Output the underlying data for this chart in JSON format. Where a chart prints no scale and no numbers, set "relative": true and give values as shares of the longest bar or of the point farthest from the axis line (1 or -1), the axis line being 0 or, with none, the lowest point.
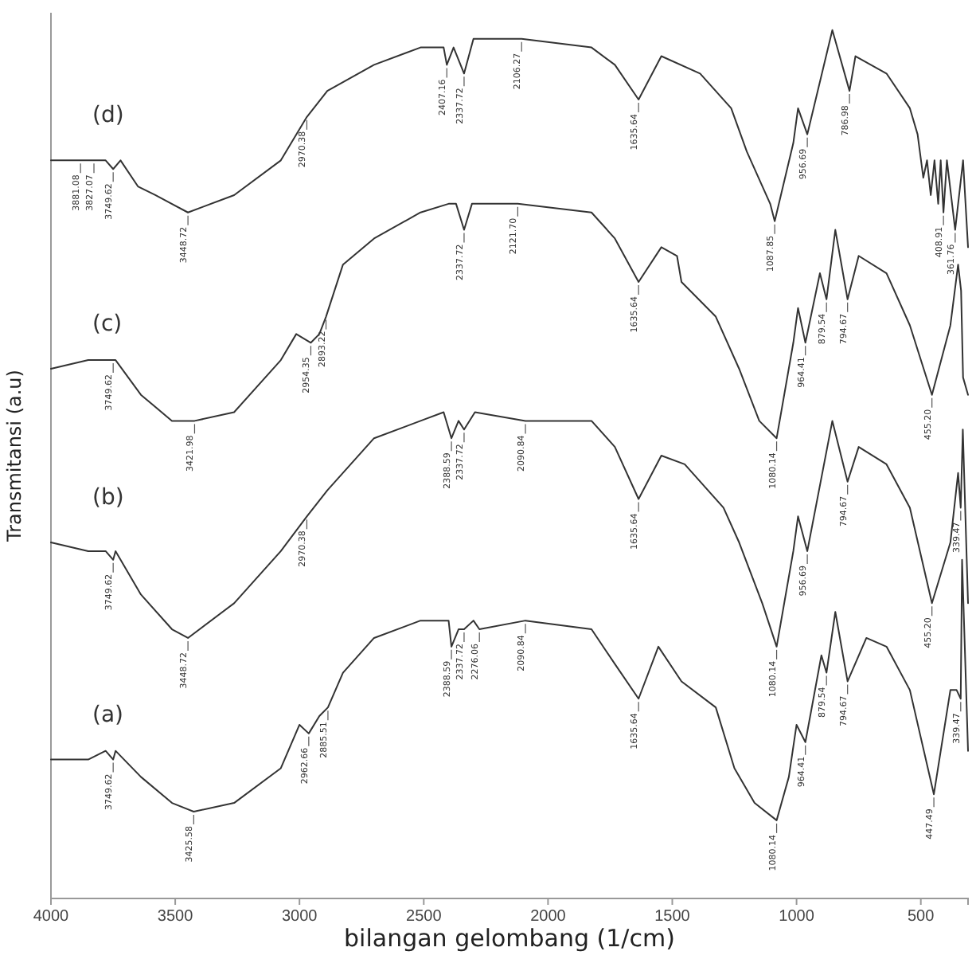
{
  "chart_data": {
    "type": "line",
    "relative": true,
    "xlabel": "bilangan gelombang (1/cm)",
    "ylabel": "Transmitansi (a.u)",
    "xlim": [
      4000,
      310
    ],
    "xticks": [
      4000,
      3500,
      3000,
      2500,
      2000,
      1500,
      1000,
      500
    ],
    "series": [
      {
        "name": "(d)",
        "color": "#333333",
        "x": [
          4000,
          3881,
          3827,
          3780,
          3749.62,
          3720,
          3650,
          3580,
          3448.72,
          3263,
          3075,
          2970.38,
          2888,
          2700,
          2513,
          2420,
          2407.16,
          2380,
          2337.72,
          2300,
          2106.27,
          1825,
          1731,
          1635.64,
          1544,
          1388,
          1263,
          1200,
          1106,
          1087.85,
          1013,
          994,
          956.69,
          856,
          786.98,
          763,
          638,
          544,
          513,
          490,
          475,
          460,
          445,
          430,
          420,
          408.91,
          395,
          361.76,
          330,
          310
        ],
        "values": [
          0.85,
          0.85,
          0.85,
          0.85,
          0.84,
          0.85,
          0.82,
          0.81,
          0.79,
          0.81,
          0.85,
          0.9,
          0.93,
          0.96,
          0.98,
          0.98,
          0.96,
          0.98,
          0.95,
          0.99,
          0.99,
          0.98,
          0.96,
          0.92,
          0.97,
          0.95,
          0.91,
          0.86,
          0.8,
          0.78,
          0.87,
          0.91,
          0.88,
          1.0,
          0.93,
          0.97,
          0.95,
          0.91,
          0.88,
          0.83,
          0.85,
          0.81,
          0.85,
          0.8,
          0.85,
          0.79,
          0.85,
          0.77,
          0.85,
          0.75
        ]
      },
      {
        "name": "(c)",
        "color": "#333333",
        "x": [
          4000,
          3850,
          3780,
          3749.62,
          3740,
          3638,
          3513,
          3421.98,
          3263,
          3075,
          3013,
          2954.35,
          2920,
          2893.22,
          2825,
          2700,
          2513,
          2400,
          2370,
          2337.72,
          2306,
          2121.7,
          1825,
          1731,
          1635.64,
          1544,
          1481,
          1463,
          1325,
          1231,
          1150,
          1080.14,
          1013,
          994,
          964.41,
          906,
          879.54,
          844,
          794.67,
          750,
          638,
          544,
          455.2,
          381,
          350,
          338,
          330,
          310
        ],
        "values": [
          0.61,
          0.62,
          0.62,
          0.62,
          0.62,
          0.58,
          0.55,
          0.55,
          0.56,
          0.62,
          0.65,
          0.64,
          0.65,
          0.67,
          0.73,
          0.76,
          0.79,
          0.8,
          0.8,
          0.77,
          0.8,
          0.8,
          0.79,
          0.76,
          0.71,
          0.75,
          0.74,
          0.71,
          0.67,
          0.61,
          0.55,
          0.53,
          0.64,
          0.68,
          0.64,
          0.72,
          0.69,
          0.77,
          0.69,
          0.74,
          0.72,
          0.66,
          0.58,
          0.66,
          0.73,
          0.7,
          0.6,
          0.58
        ]
      },
      {
        "name": "(b)",
        "color": "#333333",
        "x": [
          4000,
          3850,
          3780,
          3749.62,
          3740,
          3638,
          3513,
          3448.72,
          3263,
          3075,
          2970.38,
          2888,
          2700,
          2513,
          2420,
          2388.59,
          2360,
          2337.72,
          2294,
          2090.84,
          1825,
          1731,
          1635.64,
          1544,
          1450,
          1294,
          1231,
          1138,
          1080.14,
          1013,
          994,
          956.69,
          856,
          794.67,
          750,
          638,
          544,
          455.2,
          381,
          350,
          339.47,
          331,
          310
        ],
        "values": [
          0.41,
          0.4,
          0.4,
          0.39,
          0.4,
          0.35,
          0.31,
          0.3,
          0.34,
          0.4,
          0.44,
          0.47,
          0.53,
          0.55,
          0.56,
          0.53,
          0.55,
          0.54,
          0.56,
          0.55,
          0.55,
          0.52,
          0.46,
          0.51,
          0.5,
          0.45,
          0.41,
          0.34,
          0.29,
          0.4,
          0.44,
          0.4,
          0.55,
          0.48,
          0.52,
          0.5,
          0.45,
          0.34,
          0.41,
          0.49,
          0.45,
          0.54,
          0.34
        ]
      },
      {
        "name": "(a)",
        "color": "#333333",
        "x": [
          4000,
          3850,
          3780,
          3749.62,
          3740,
          3638,
          3513,
          3425.58,
          3263,
          3075,
          3000,
          2962.66,
          2920,
          2885.51,
          2825,
          2700,
          2513,
          2400,
          2388.59,
          2360,
          2337.72,
          2300,
          2276.06,
          2090.84,
          1825,
          1731,
          1635.64,
          1556,
          1463,
          1325,
          1250,
          1169,
          1080.14,
          1031,
          1000,
          964.41,
          900,
          879.54,
          844,
          794.67,
          719,
          638,
          544,
          447.49,
          381,
          356,
          339.47,
          334,
          310
        ],
        "values": [
          0.16,
          0.16,
          0.17,
          0.16,
          0.17,
          0.14,
          0.11,
          0.1,
          0.11,
          0.15,
          0.2,
          0.19,
          0.21,
          0.22,
          0.26,
          0.3,
          0.32,
          0.32,
          0.29,
          0.31,
          0.31,
          0.32,
          0.31,
          0.32,
          0.31,
          0.27,
          0.23,
          0.29,
          0.25,
          0.22,
          0.15,
          0.11,
          0.09,
          0.14,
          0.2,
          0.18,
          0.28,
          0.26,
          0.33,
          0.25,
          0.3,
          0.29,
          0.24,
          0.12,
          0.24,
          0.24,
          0.23,
          0.39,
          0.17
        ]
      }
    ],
    "annotations": [
      {
        "text": "3881.08",
        "x": 3881,
        "y": 0.85
      },
      {
        "text": "3827.07",
        "x": 3827,
        "y": 0.85
      },
      {
        "text": "3749.62",
        "x": 3749.62,
        "y": 0.84
      },
      {
        "text": "3448.72",
        "x": 3448.72,
        "y": 0.79
      },
      {
        "text": "2970.38",
        "x": 2970.38,
        "y": 0.9
      },
      {
        "text": "2407.16",
        "x": 2407.16,
        "y": 0.96
      },
      {
        "text": "2337.72",
        "x": 2337.72,
        "y": 0.95
      },
      {
        "text": "2106.27",
        "x": 2106.27,
        "y": 0.99
      },
      {
        "text": "1635.64",
        "x": 1635.64,
        "y": 0.92
      },
      {
        "text": "1087.85",
        "x": 1087.85,
        "y": 0.78
      },
      {
        "text": "956.69",
        "x": 956.69,
        "y": 0.88
      },
      {
        "text": "786.98",
        "x": 786.98,
        "y": 0.93
      },
      {
        "text": "408.91",
        "x": 408.91,
        "y": 0.79
      },
      {
        "text": "361.76",
        "x": 361.76,
        "y": 0.77
      },
      {
        "text": "3749.62",
        "x": 3749.62,
        "y": 0.62
      },
      {
        "text": "3421.98",
        "x": 3421.98,
        "y": 0.55
      },
      {
        "text": "2954.35",
        "x": 2954.35,
        "y": 0.64
      },
      {
        "text": "2893.22",
        "x": 2893.22,
        "y": 0.67
      },
      {
        "text": "2337.72",
        "x": 2337.72,
        "y": 0.77
      },
      {
        "text": "2121.70",
        "x": 2121.7,
        "y": 0.8
      },
      {
        "text": "1635.64",
        "x": 1635.64,
        "y": 0.71
      },
      {
        "text": "1080.14",
        "x": 1080.14,
        "y": 0.53
      },
      {
        "text": "964.41",
        "x": 964.41,
        "y": 0.64
      },
      {
        "text": "879.54",
        "x": 879.54,
        "y": 0.69
      },
      {
        "text": "794.67",
        "x": 794.67,
        "y": 0.69
      },
      {
        "text": "455.20",
        "x": 455.2,
        "y": 0.58
      },
      {
        "text": "3749.62",
        "x": 3749.62,
        "y": 0.39
      },
      {
        "text": "3448.72",
        "x": 3448.72,
        "y": 0.3
      },
      {
        "text": "2970.38",
        "x": 2970.38,
        "y": 0.44
      },
      {
        "text": "2388.59",
        "x": 2388.59,
        "y": 0.53
      },
      {
        "text": "2337.72",
        "x": 2337.72,
        "y": 0.54
      },
      {
        "text": "2090.84",
        "x": 2090.84,
        "y": 0.55
      },
      {
        "text": "1635.64",
        "x": 1635.64,
        "y": 0.46
      },
      {
        "text": "1080.14",
        "x": 1080.14,
        "y": 0.29
      },
      {
        "text": "956.69",
        "x": 956.69,
        "y": 0.4
      },
      {
        "text": "794.67",
        "x": 794.67,
        "y": 0.48
      },
      {
        "text": "455.20",
        "x": 455.2,
        "y": 0.34
      },
      {
        "text": "339.47",
        "x": 339.47,
        "y": 0.45
      },
      {
        "text": "3749.62",
        "x": 3749.62,
        "y": 0.16
      },
      {
        "text": "3425.58",
        "x": 3425.58,
        "y": 0.1
      },
      {
        "text": "2962.66",
        "x": 2962.66,
        "y": 0.19
      },
      {
        "text": "2885.51",
        "x": 2885.51,
        "y": 0.22
      },
      {
        "text": "2388.59",
        "x": 2388.59,
        "y": 0.29
      },
      {
        "text": "2337.72",
        "x": 2337.72,
        "y": 0.31
      },
      {
        "text": "2276.06",
        "x": 2276.06,
        "y": 0.31
      },
      {
        "text": "2090.84",
        "x": 2090.84,
        "y": 0.32
      },
      {
        "text": "1635.64",
        "x": 1635.64,
        "y": 0.23
      },
      {
        "text": "1080.14",
        "x": 1080.14,
        "y": 0.09
      },
      {
        "text": "964.41",
        "x": 964.41,
        "y": 0.18
      },
      {
        "text": "879.54",
        "x": 879.54,
        "y": 0.26
      },
      {
        "text": "794.67",
        "x": 794.67,
        "y": 0.25
      },
      {
        "text": "447.49",
        "x": 447.49,
        "y": 0.12
      },
      {
        "text": "339.47",
        "x": 339.47,
        "y": 0.23
      }
    ]
  }
}
